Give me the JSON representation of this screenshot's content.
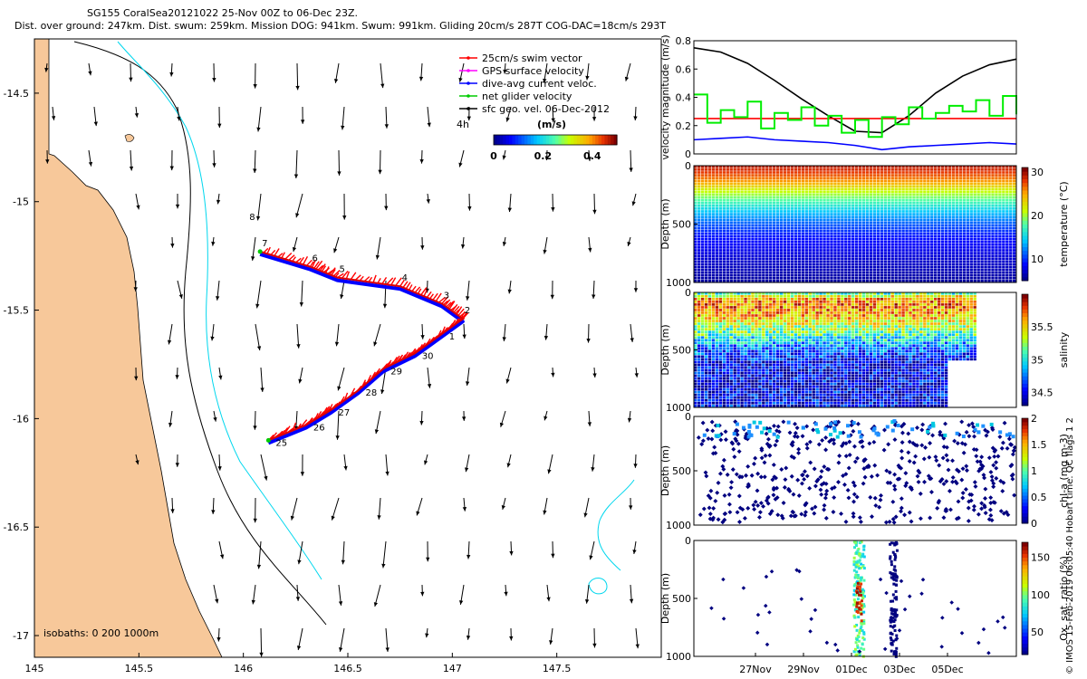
{
  "header": {
    "line1": "SG155 CoralSea20121022 25-Nov 00Z to 06-Dec 23Z.",
    "line2": "Dist. over ground: 247km. Dist. swum: 259km. Mission DOG: 941km. Swum: 991km. Gliding 20cm/s 287T COG-DAC=18cm/s 293T"
  },
  "chart_data": [
    {
      "type": "scatter",
      "id": "map",
      "xlim": [
        145,
        148
      ],
      "ylim": [
        -17.1,
        -14.25
      ],
      "xticks": [
        145,
        145.5,
        146,
        146.5,
        147,
        147.5
      ],
      "xtick_labels": [
        "145",
        "145.5",
        "146",
        "146.5",
        "147",
        "147.5"
      ],
      "yticks": [
        -14.5,
        -15,
        -15.5,
        -16,
        -16.5,
        -17
      ],
      "ytick_labels": [
        "-14.5",
        "-15",
        "-15.5",
        "-16",
        "-16.5",
        "-17"
      ],
      "legend": {
        "placement": "top-right",
        "entries": [
          {
            "label": "25cm/s swim vector",
            "color": "#ff0000"
          },
          {
            "label": "GPS surface velocity",
            "color": "#ff00ff"
          },
          {
            "label": "dive-avg current veloc.",
            "color": "#0000ff"
          },
          {
            "label": "net glider velocity",
            "color": "#00cc00"
          },
          {
            "label": "sfc geo. vel. 06-Dec-2012",
            "color": "#000000"
          }
        ],
        "time_label": "4h"
      },
      "colorbar": {
        "label": "(m/s)",
        "ticks": [
          "0",
          "0.2",
          "0.4"
        ],
        "range": [
          0,
          0.5
        ]
      },
      "isobath_label": "isobaths: 0   200  1000m",
      "track": [
        {
          "day": "25",
          "lon": 146.12,
          "lat": -16.1
        },
        {
          "day": "26",
          "lon": 146.3,
          "lat": -16.03
        },
        {
          "day": "27",
          "lon": 146.42,
          "lat": -15.96
        },
        {
          "day": "28",
          "lon": 146.55,
          "lat": -15.87
        },
        {
          "day": "29",
          "lon": 146.67,
          "lat": -15.77
        },
        {
          "day": "30",
          "lon": 146.82,
          "lat": -15.7
        },
        {
          "day": "1",
          "lon": 146.95,
          "lat": -15.61
        },
        {
          "day": "2",
          "lon": 147.05,
          "lat": -15.54
        },
        {
          "day": "3",
          "lon": 146.95,
          "lat": -15.47
        },
        {
          "day": "4",
          "lon": 146.75,
          "lat": -15.39
        },
        {
          "day": "5",
          "lon": 146.45,
          "lat": -15.35
        },
        {
          "day": "6",
          "lon": 146.32,
          "lat": -15.3
        },
        {
          "day": "7",
          "lon": 146.08,
          "lat": -15.23
        },
        {
          "day": "8",
          "lon": 146.02,
          "lat": -15.11
        }
      ]
    },
    {
      "type": "line",
      "id": "velocity",
      "ylabel": "velocity magnitude (m/s)",
      "ylim": [
        0,
        0.8
      ],
      "yticks": [
        0,
        0.2,
        0.4,
        0.6,
        0.8
      ],
      "ytick_labels": [
        "0",
        "0.2",
        "0.4",
        "0.6",
        "0.8"
      ],
      "xlim": [
        0,
        12
      ],
      "series": [
        {
          "color": "#000000",
          "x": [
            0,
            1,
            2,
            3,
            4,
            5,
            6,
            7,
            8,
            9,
            10,
            11,
            12
          ],
          "values": [
            0.75,
            0.72,
            0.64,
            0.52,
            0.39,
            0.27,
            0.16,
            0.15,
            0.27,
            0.43,
            0.55,
            0.63,
            0.67
          ]
        },
        {
          "color": "#ff0000",
          "x": [
            0,
            12
          ],
          "values": [
            0.25,
            0.25
          ]
        },
        {
          "color": "#00ee00",
          "x": [
            0,
            0.5,
            1,
            1.5,
            2,
            2.5,
            3,
            3.5,
            4,
            4.5,
            5,
            5.5,
            6,
            6.5,
            7,
            7.5,
            8,
            8.5,
            9,
            9.5,
            10,
            10.5,
            11,
            11.5,
            12
          ],
          "values": [
            0.42,
            0.22,
            0.31,
            0.26,
            0.37,
            0.18,
            0.29,
            0.24,
            0.33,
            0.2,
            0.27,
            0.15,
            0.24,
            0.12,
            0.26,
            0.21,
            0.33,
            0.25,
            0.29,
            0.34,
            0.3,
            0.38,
            0.27,
            0.41,
            0.28
          ]
        },
        {
          "color": "#0000ff",
          "x": [
            0,
            1,
            2,
            3,
            4,
            5,
            6,
            7,
            8,
            9,
            10,
            11,
            12
          ],
          "values": [
            0.1,
            0.11,
            0.12,
            0.1,
            0.09,
            0.08,
            0.06,
            0.03,
            0.05,
            0.06,
            0.07,
            0.08,
            0.07
          ]
        }
      ]
    },
    {
      "type": "heatmap",
      "id": "temperature",
      "ylabel": "Depth (m)",
      "cblabel": "temperature (°C)",
      "cbticks": [
        10,
        20,
        30
      ],
      "cblim": [
        5,
        31
      ],
      "yticks": [
        0,
        500,
        1000
      ],
      "ylim": [
        0,
        1000
      ],
      "profile_depth": [
        0,
        50,
        100,
        150,
        200,
        300,
        400,
        500,
        600,
        800,
        1000
      ],
      "profile_value": [
        29.5,
        28.5,
        27,
        25,
        22,
        18,
        14,
        11,
        9,
        7,
        5.5
      ]
    },
    {
      "type": "heatmap",
      "id": "salinity",
      "ylabel": "Depth (m)",
      "cblabel": "salinity",
      "cbticks": [
        34.5,
        35,
        35.5
      ],
      "cblim": [
        34.3,
        36
      ],
      "yticks": [
        0,
        500,
        1000
      ],
      "ylim": [
        0,
        1000
      ],
      "data_end_fraction": 0.87,
      "profile_depth": [
        0,
        50,
        100,
        200,
        300,
        400,
        500,
        600,
        800,
        1000
      ],
      "profile_value": [
        35.0,
        35.6,
        35.7,
        35.6,
        35.3,
        35.0,
        34.7,
        34.5,
        34.45,
        34.5
      ]
    },
    {
      "type": "heatmap",
      "id": "chla",
      "ylabel": "Depth (m)",
      "cblabel": "chl-a (mg m-3)",
      "cbticks": [
        0,
        0.5,
        1,
        1.5,
        2
      ],
      "cblim": [
        0,
        2
      ],
      "yticks": [
        0,
        500,
        1000
      ],
      "ylim": [
        0,
        1000
      ]
    },
    {
      "type": "scatter",
      "id": "oxygen",
      "ylabel": "Depth (m)",
      "cblabel": "Ox. sat. ratio (%)",
      "cbticks": [
        50,
        100,
        150
      ],
      "cblim": [
        20,
        170
      ],
      "yticks": [
        0,
        500,
        1000
      ],
      "ylim": [
        0,
        1000
      ],
      "xtick_labels": [
        "27Nov",
        "29Nov",
        "01Dec",
        "03Dec",
        "05Dec"
      ]
    }
  ],
  "side_label": "© IMOS 15-Feb-2019 06:05:40 Hobart time. QC flags 1  2"
}
